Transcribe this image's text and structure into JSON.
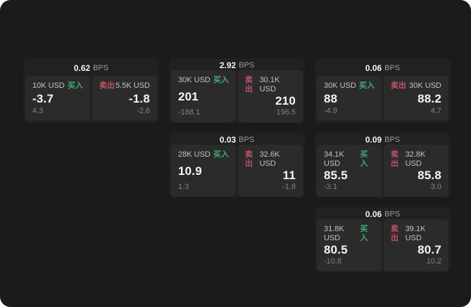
{
  "labels": {
    "bps_unit": "BPS",
    "buy": "买入",
    "sell": "卖出"
  },
  "colors": {
    "page_bg": "#1b1b1b",
    "card_bg": "#212121",
    "pane_bg": "#2b2b2b",
    "buy": "#3fae74",
    "sell": "#c05265"
  },
  "cards": [
    {
      "bps": "0.62",
      "row": 1,
      "col": 1,
      "buy": {
        "amount": "10K USD",
        "price": "-3.7",
        "sub": "4.3"
      },
      "sell": {
        "amount": "5.5K USD",
        "price": "-1.8",
        "sub": "-2.6"
      }
    },
    {
      "bps": "2.92",
      "row": 1,
      "col": 2,
      "buy": {
        "amount": "30K USD",
        "price": "201",
        "sub": "-188.1"
      },
      "sell": {
        "amount": "30.1K USD",
        "price": "210",
        "sub": "196.5"
      }
    },
    {
      "bps": "0.06",
      "row": 1,
      "col": 3,
      "buy": {
        "amount": "30K USD",
        "price": "88",
        "sub": "-4.9"
      },
      "sell": {
        "amount": "30K USD",
        "price": "88.2",
        "sub": "4.7"
      }
    },
    {
      "bps": "0.03",
      "row": 2,
      "col": 2,
      "buy": {
        "amount": "28K USD",
        "price": "10.9",
        "sub": "1.3"
      },
      "sell": {
        "amount": "32.6K USD",
        "price": "11",
        "sub": "-1.8"
      }
    },
    {
      "bps": "0.09",
      "row": 2,
      "col": 3,
      "buy": {
        "amount": "34.1K USD",
        "price": "85.5",
        "sub": "-3.1"
      },
      "sell": {
        "amount": "32.8K USD",
        "price": "85.8",
        "sub": "3.0"
      }
    },
    {
      "bps": "0.06",
      "row": 3,
      "col": 3,
      "buy": {
        "amount": "31.8K USD",
        "price": "80.5",
        "sub": "-10.8"
      },
      "sell": {
        "amount": "39.1K USD",
        "price": "80.7",
        "sub": "10.2"
      }
    }
  ]
}
